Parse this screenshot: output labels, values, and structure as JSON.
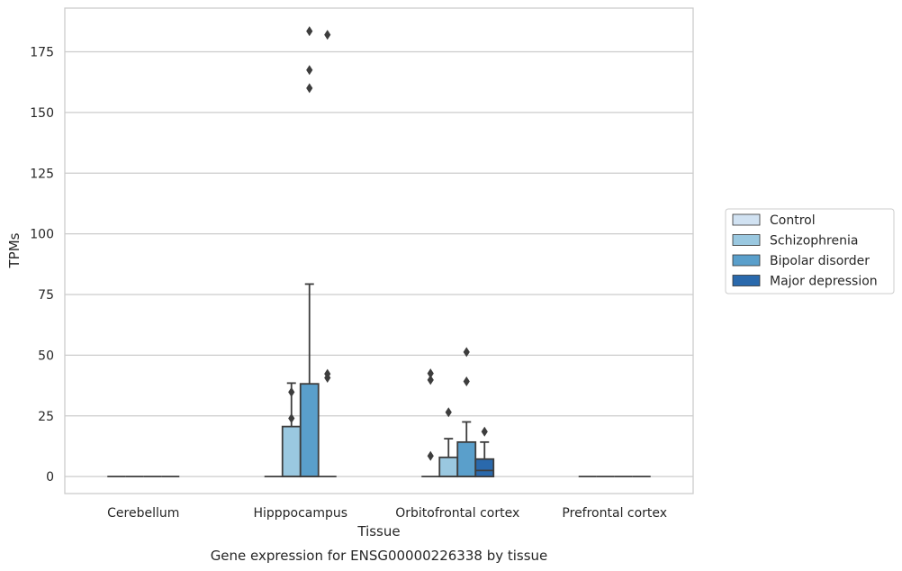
{
  "chart_data": {
    "type": "box",
    "title": "",
    "caption": "Gene expression for ENSG00000226338 by tissue",
    "xlabel": "Tissue",
    "ylabel": "TPMs",
    "ylim": [
      -7,
      193
    ],
    "yticks": [
      0,
      25,
      50,
      75,
      100,
      125,
      150,
      175
    ],
    "grid": "horizontal",
    "legend_position": "right",
    "categories": [
      "Cerebellum",
      "Hipppocampus",
      "Orbitofrontal cortex",
      "Prefrontal cortex"
    ],
    "series": [
      {
        "name": "Control",
        "color": "#d1e2f2"
      },
      {
        "name": "Schizophrenia",
        "color": "#9ac8e0"
      },
      {
        "name": "Bipolar disorder",
        "color": "#5a9fcb"
      },
      {
        "name": "Major depression",
        "color": "#2a69ac"
      }
    ],
    "boxes": [
      {
        "category": 0,
        "series": 0,
        "q1": 0,
        "median": 0,
        "q3": 0,
        "whisker_low": 0,
        "whisker_high": 0,
        "outliers": []
      },
      {
        "category": 0,
        "series": 1,
        "q1": 0,
        "median": 0,
        "q3": 0,
        "whisker_low": 0,
        "whisker_high": 0,
        "outliers": []
      },
      {
        "category": 0,
        "series": 2,
        "q1": 0,
        "median": 0,
        "q3": 0,
        "whisker_low": 0,
        "whisker_high": 0,
        "outliers": []
      },
      {
        "category": 0,
        "series": 3,
        "q1": 0,
        "median": 0,
        "q3": 0,
        "whisker_low": 0,
        "whisker_high": 0,
        "outliers": []
      },
      {
        "category": 1,
        "series": 0,
        "q1": 0,
        "median": 0,
        "q3": 0,
        "whisker_low": 0,
        "whisker_high": 0,
        "outliers": []
      },
      {
        "category": 1,
        "series": 1,
        "q1": 0,
        "median": 0,
        "q3": 20.6,
        "whisker_low": 0,
        "whisker_high": 38.5,
        "outliers": [
          24,
          34.8
        ]
      },
      {
        "category": 1,
        "series": 2,
        "q1": 0,
        "median": 0,
        "q3": 38.2,
        "whisker_low": 0,
        "whisker_high": 79.3,
        "outliers": [
          160,
          167.5,
          183.5
        ]
      },
      {
        "category": 1,
        "series": 3,
        "q1": 0,
        "median": 0,
        "q3": 0,
        "whisker_low": 0,
        "whisker_high": 0,
        "outliers": [
          40.7,
          42.3,
          182
        ]
      },
      {
        "category": 2,
        "series": 0,
        "q1": 0,
        "median": 0,
        "q3": 0,
        "whisker_low": 0,
        "whisker_high": 0,
        "outliers": [
          8.5,
          39.8,
          42.5
        ]
      },
      {
        "category": 2,
        "series": 1,
        "q1": 0,
        "median": 0,
        "q3": 7.9,
        "whisker_low": 0,
        "whisker_high": 15.6,
        "outliers": [
          26.5
        ]
      },
      {
        "category": 2,
        "series": 2,
        "q1": 0,
        "median": 0,
        "q3": 14.2,
        "whisker_low": 0,
        "whisker_high": 22.5,
        "outliers": [
          39.2,
          51.3
        ]
      },
      {
        "category": 2,
        "series": 3,
        "q1": 0,
        "median": 2.5,
        "q3": 7.2,
        "whisker_low": 0,
        "whisker_high": 14.2,
        "outliers": [
          18.5
        ]
      },
      {
        "category": 3,
        "series": 0,
        "q1": 0,
        "median": 0,
        "q3": 0,
        "whisker_low": 0,
        "whisker_high": 0,
        "outliers": []
      },
      {
        "category": 3,
        "series": 1,
        "q1": 0,
        "median": 0,
        "q3": 0,
        "whisker_low": 0,
        "whisker_high": 0,
        "outliers": []
      },
      {
        "category": 3,
        "series": 2,
        "q1": 0,
        "median": 0,
        "q3": 0,
        "whisker_low": 0,
        "whisker_high": 0,
        "outliers": []
      },
      {
        "category": 3,
        "series": 3,
        "q1": 0,
        "median": 0,
        "q3": 0,
        "whisker_low": 0,
        "whisker_high": 0,
        "outliers": []
      }
    ]
  }
}
